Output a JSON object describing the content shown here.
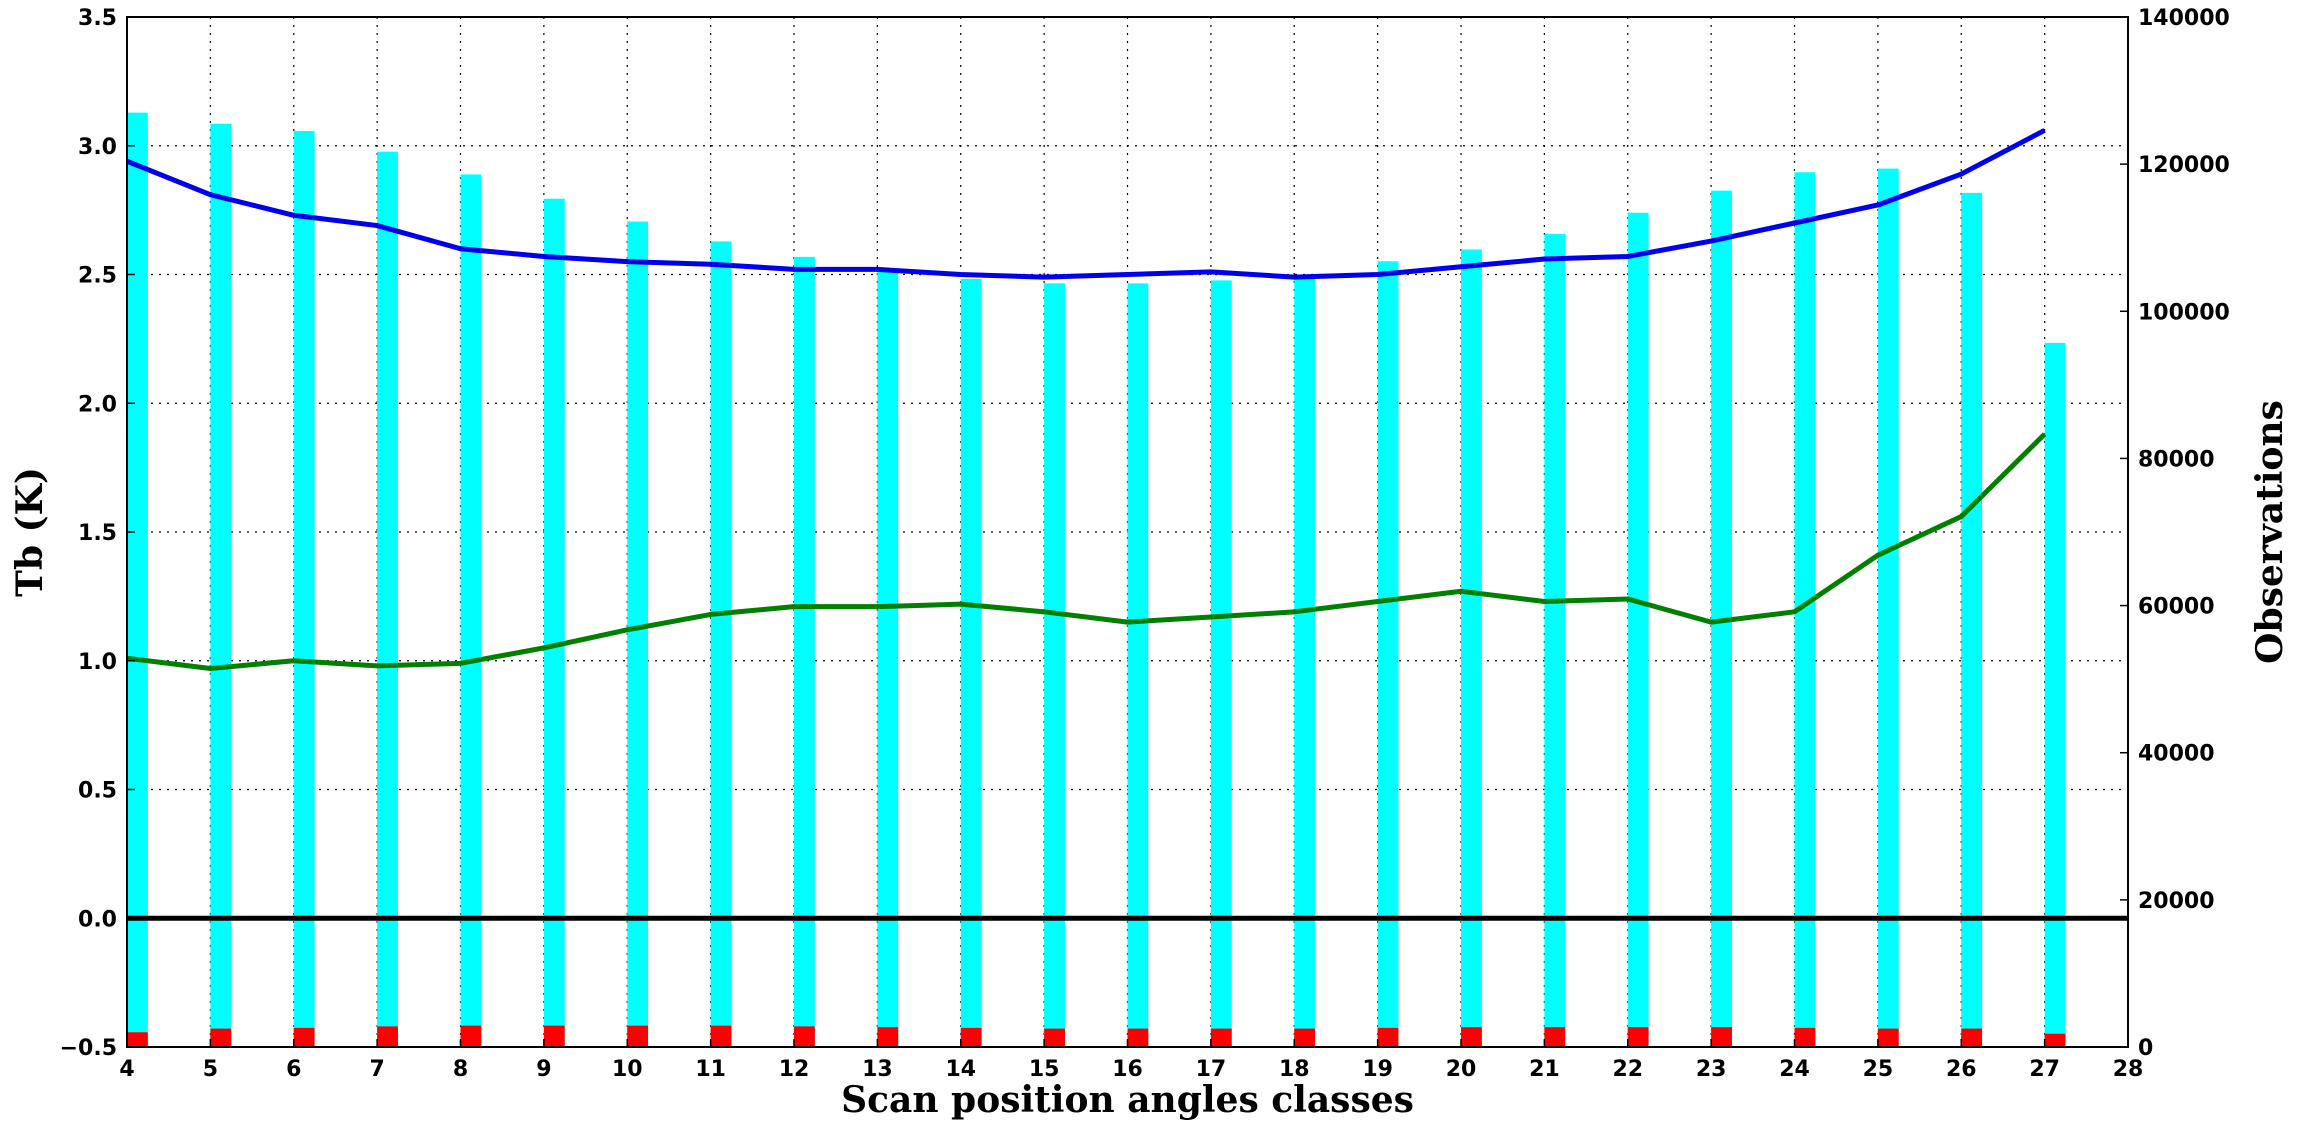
{
  "chart_data": {
    "type": "bar",
    "title": "",
    "xlabel": "Scan position angles classes",
    "ylabel_left": "Tb (K)",
    "ylabel_right": "Observations",
    "xlim": [
      4,
      28
    ],
    "ylim_left": [
      -0.5,
      3.5
    ],
    "ylim_right": [
      0,
      140000
    ],
    "grid": true,
    "x_ticks": [
      "4",
      "5",
      "6",
      "7",
      "8",
      "9",
      "10",
      "11",
      "12",
      "13",
      "14",
      "15",
      "16",
      "17",
      "18",
      "19",
      "20",
      "21",
      "22",
      "23",
      "24",
      "25",
      "26",
      "27",
      "28"
    ],
    "y_ticks_left": [
      "3.5",
      "3.0",
      "2.5",
      "2.0",
      "1.5",
      "1.0",
      "0.5",
      "0.0",
      "−0.5"
    ],
    "y_ticks_right": [
      "140000",
      "120000",
      "100000",
      "80000",
      "60000",
      "40000",
      "20000",
      "0"
    ],
    "categories": [
      4,
      5,
      6,
      7,
      8,
      9,
      10,
      11,
      12,
      13,
      14,
      15,
      16,
      17,
      18,
      19,
      20,
      21,
      22,
      23,
      24,
      25,
      26,
      27
    ],
    "series": [
      {
        "axis": "right",
        "kind": "bar",
        "color": "#00ffff",
        "values": [
          127000,
          125500,
          124500,
          121700,
          118600,
          115300,
          112200,
          109500,
          107400,
          105700,
          104400,
          103800,
          103800,
          104200,
          104600,
          106800,
          108400,
          110500,
          113400,
          116400,
          118900,
          119400,
          116100,
          95700
        ]
      },
      {
        "axis": "right",
        "kind": "bar",
        "color": "#ff0000",
        "values": [
          2000,
          2500,
          2600,
          2800,
          2900,
          2900,
          2900,
          2900,
          2800,
          2700,
          2600,
          2500,
          2500,
          2500,
          2500,
          2600,
          2700,
          2700,
          2700,
          2700,
          2600,
          2500,
          2500,
          1800
        ]
      },
      {
        "axis": "left",
        "kind": "line",
        "color": "#0000ee",
        "values": [
          2.94,
          2.81,
          2.73,
          2.69,
          2.6,
          2.57,
          2.55,
          2.54,
          2.52,
          2.52,
          2.5,
          2.49,
          2.5,
          2.51,
          2.49,
          2.5,
          2.53,
          2.56,
          2.57,
          2.63,
          2.7,
          2.77,
          2.89,
          3.06
        ]
      },
      {
        "axis": "left",
        "kind": "line",
        "color": "#008000",
        "values": [
          1.01,
          0.97,
          1.0,
          0.98,
          0.99,
          1.05,
          1.12,
          1.18,
          1.21,
          1.21,
          1.22,
          1.19,
          1.15,
          1.17,
          1.19,
          1.23,
          1.27,
          1.23,
          1.24,
          1.15,
          1.19,
          1.41,
          1.56,
          1.88
        ]
      },
      {
        "axis": "left",
        "kind": "line",
        "color": "#000000",
        "values": [
          0,
          0,
          0,
          0,
          0,
          0,
          0,
          0,
          0,
          0,
          0,
          0,
          0,
          0,
          0,
          0,
          0,
          0,
          0,
          0,
          0,
          0,
          0,
          0
        ]
      }
    ]
  }
}
